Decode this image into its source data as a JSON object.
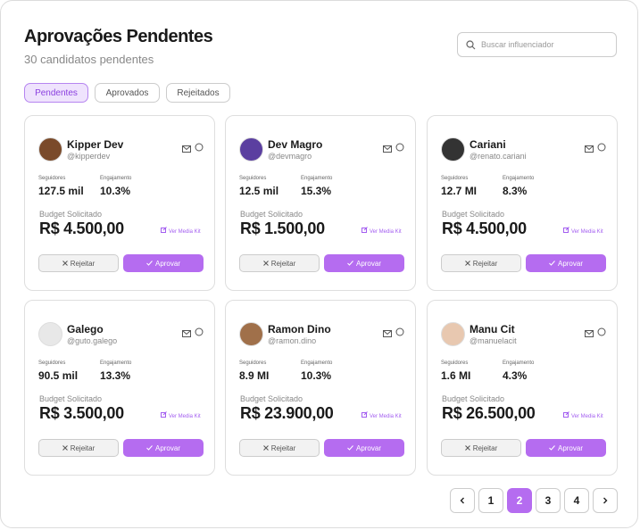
{
  "header": {
    "title": "Aprovações Pendentes",
    "subtitle": "30 candidatos pendentes",
    "search_placeholder": "Buscar influenciador"
  },
  "tabs": [
    "Pendentes",
    "Aprovados",
    "Rejeitados"
  ],
  "cards": [
    {
      "name": "Kipper Dev",
      "handle": "@kipperdev",
      "followers_label": "Seguidores",
      "followers": "127.5 mil",
      "engagement_label": "Engajamento",
      "engagement": "10.3%",
      "budget_label": "Budget Solicitado",
      "budget": "R$ 4.500,00",
      "media_kit": "Ver Media Kit",
      "reject": "Rejeitar",
      "approve": "Aprovar"
    },
    {
      "name": "Dev Magro",
      "handle": "@devmagro",
      "followers_label": "Seguidores",
      "followers": "12.5 mil",
      "engagement_label": "Engajamento",
      "engagement": "15.3%",
      "budget_label": "Budget Solicitado",
      "budget": "R$ 1.500,00",
      "media_kit": "Ver Media Kit",
      "reject": "Rejeitar",
      "approve": "Aprovar"
    },
    {
      "name": "Cariani",
      "handle": "@renato.cariani",
      "followers_label": "Seguidores",
      "followers": "12.7 MI",
      "engagement_label": "Engajamento",
      "engagement": "8.3%",
      "budget_label": "Budget Solicitado",
      "budget": "R$ 4.500,00",
      "media_kit": "Ver Media Kit",
      "reject": "Rejeitar",
      "approve": "Aprovar"
    },
    {
      "name": "Galego",
      "handle": "@guto.galego",
      "followers_label": "Seguidores",
      "followers": "90.5 mil",
      "engagement_label": "Engajamento",
      "engagement": "13.3%",
      "budget_label": "Budget Solicitado",
      "budget": "R$ 3.500,00",
      "media_kit": "Ver Media Kit",
      "reject": "Rejeitar",
      "approve": "Aprovar"
    },
    {
      "name": "Ramon Dino",
      "handle": "@ramon.dino",
      "followers_label": "Seguidores",
      "followers": "8.9 MI",
      "engagement_label": "Engajamento",
      "engagement": "10.3%",
      "budget_label": "Budget Solicitado",
      "budget": "R$ 23.900,00",
      "media_kit": "Ver Media Kit",
      "reject": "Rejeitar",
      "approve": "Aprovar"
    },
    {
      "name": "Manu Cit",
      "handle": "@manuelacit",
      "followers_label": "Seguidores",
      "followers": "1.6 MI",
      "engagement_label": "Engajamento",
      "engagement": "4.3%",
      "budget_label": "Budget Solicitado",
      "budget": "R$ 26.500,00",
      "media_kit": "Ver Media Kit",
      "reject": "Rejeitar",
      "approve": "Aprovar"
    }
  ],
  "pagination": {
    "pages": [
      "1",
      "2",
      "3",
      "4"
    ],
    "current": "2"
  }
}
